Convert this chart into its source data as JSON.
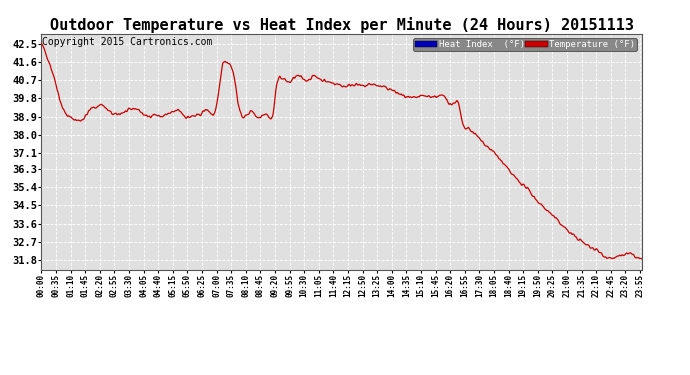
{
  "title": "Outdoor Temperature vs Heat Index per Minute (24 Hours) 20151113",
  "copyright": "Copyright 2015 Cartronics.com",
  "legend_heat_label": "Heat Index  (°F)",
  "legend_temp_label": "Temperature (°F)",
  "legend_heat_bg": "#0000bb",
  "legend_temp_bg": "#cc0000",
  "line_color": "#cc0000",
  "bg_color": "#ffffff",
  "plot_bg_color": "#e0e0e0",
  "grid_color": "#ffffff",
  "title_fontsize": 11,
  "copyright_fontsize": 7,
  "yticks": [
    31.8,
    32.7,
    33.6,
    34.5,
    35.4,
    36.3,
    37.1,
    38.0,
    38.9,
    39.8,
    40.7,
    41.6,
    42.5
  ],
  "ylim": [
    31.3,
    43.0
  ],
  "x_tick_every": 35,
  "total_minutes": 1440,
  "seed": 42,
  "control_points": [
    [
      0,
      42.5
    ],
    [
      5,
      42.3
    ],
    [
      15,
      41.8
    ],
    [
      25,
      41.2
    ],
    [
      35,
      40.5
    ],
    [
      45,
      39.7
    ],
    [
      60,
      39.0
    ],
    [
      75,
      38.8
    ],
    [
      90,
      38.7
    ],
    [
      105,
      38.9
    ],
    [
      120,
      39.3
    ],
    [
      135,
      39.4
    ],
    [
      145,
      39.5
    ],
    [
      150,
      39.4
    ],
    [
      160,
      39.2
    ],
    [
      175,
      39.0
    ],
    [
      195,
      39.1
    ],
    [
      210,
      39.2
    ],
    [
      225,
      39.3
    ],
    [
      240,
      39.1
    ],
    [
      255,
      38.9
    ],
    [
      270,
      39.0
    ],
    [
      285,
      38.9
    ],
    [
      300,
      39.0
    ],
    [
      315,
      39.1
    ],
    [
      330,
      39.2
    ],
    [
      345,
      38.9
    ],
    [
      360,
      38.9
    ],
    [
      380,
      39.0
    ],
    [
      400,
      39.2
    ],
    [
      420,
      39.4
    ],
    [
      435,
      41.5
    ],
    [
      445,
      41.6
    ],
    [
      455,
      41.4
    ],
    [
      465,
      40.5
    ],
    [
      475,
      39.2
    ],
    [
      485,
      38.9
    ],
    [
      495,
      39.0
    ],
    [
      505,
      39.2
    ],
    [
      515,
      38.9
    ],
    [
      530,
      39.0
    ],
    [
      545,
      38.9
    ],
    [
      555,
      39.0
    ],
    [
      565,
      40.6
    ],
    [
      575,
      40.8
    ],
    [
      585,
      40.7
    ],
    [
      595,
      40.6
    ],
    [
      605,
      40.8
    ],
    [
      615,
      40.9
    ],
    [
      625,
      40.8
    ],
    [
      635,
      40.7
    ],
    [
      645,
      40.8
    ],
    [
      655,
      40.9
    ],
    [
      665,
      40.8
    ],
    [
      675,
      40.7
    ],
    [
      690,
      40.6
    ],
    [
      710,
      40.5
    ],
    [
      730,
      40.4
    ],
    [
      750,
      40.5
    ],
    [
      770,
      40.4
    ],
    [
      790,
      40.5
    ],
    [
      810,
      40.4
    ],
    [
      830,
      40.3
    ],
    [
      850,
      40.1
    ],
    [
      870,
      39.9
    ],
    [
      890,
      39.8
    ],
    [
      910,
      39.9
    ],
    [
      930,
      39.9
    ],
    [
      950,
      39.9
    ],
    [
      970,
      39.8
    ],
    [
      985,
      39.5
    ],
    [
      1000,
      39.5
    ],
    [
      1010,
      38.5
    ],
    [
      1020,
      38.3
    ],
    [
      1030,
      38.2
    ],
    [
      1050,
      37.8
    ],
    [
      1070,
      37.4
    ],
    [
      1090,
      37.0
    ],
    [
      1110,
      36.5
    ],
    [
      1130,
      36.0
    ],
    [
      1150,
      35.6
    ],
    [
      1170,
      35.2
    ],
    [
      1190,
      34.7
    ],
    [
      1210,
      34.3
    ],
    [
      1230,
      33.9
    ],
    [
      1250,
      33.5
    ],
    [
      1270,
      33.1
    ],
    [
      1290,
      32.8
    ],
    [
      1310,
      32.5
    ],
    [
      1330,
      32.3
    ],
    [
      1350,
      32.0
    ],
    [
      1370,
      31.9
    ],
    [
      1390,
      32.0
    ],
    [
      1410,
      32.1
    ],
    [
      1420,
      32.0
    ],
    [
      1430,
      31.9
    ],
    [
      1439,
      31.8
    ]
  ]
}
